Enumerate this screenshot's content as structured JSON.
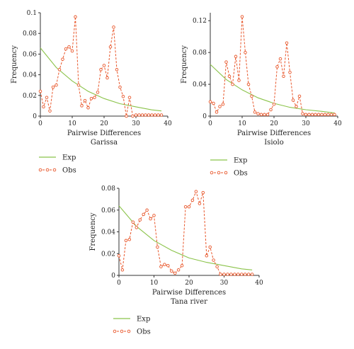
{
  "chart_data": [
    {
      "type": "line",
      "subtitle": "Garissa",
      "xlabel": "Pairwise Differences",
      "ylabel": "Frequency",
      "xlim": [
        0,
        40
      ],
      "ylim": [
        0,
        0.1
      ],
      "xticks": [
        "0",
        "10",
        "20",
        "30",
        "40"
      ],
      "yticks": [
        "0",
        "0.02",
        "0.04",
        "0.06",
        "0.08",
        "0.1"
      ],
      "grid": false,
      "legend_position": "below",
      "series": [
        {
          "name": "Exp",
          "color": "#8bc34a",
          "marker": "none",
          "x": [
            0,
            5,
            10,
            15,
            20,
            25,
            30,
            35,
            38
          ],
          "y": [
            0.066,
            0.047,
            0.034,
            0.024,
            0.017,
            0.012,
            0.009,
            0.006,
            0.005
          ]
        },
        {
          "name": "Obs",
          "color": "#e8562a",
          "marker": "open-circle",
          "x": [
            0,
            1,
            2,
            3,
            4,
            5,
            6,
            7,
            8,
            9,
            10,
            11,
            12,
            13,
            14,
            15,
            16,
            17,
            18,
            19,
            20,
            21,
            22,
            23,
            24,
            25,
            26,
            27,
            28,
            29,
            30,
            31,
            32,
            33,
            34,
            35,
            36,
            37,
            38
          ],
          "y": [
            0.024,
            0.009,
            0.018,
            0.005,
            0.028,
            0.03,
            0.045,
            0.055,
            0.065,
            0.067,
            0.063,
            0.096,
            0.03,
            0.01,
            0.015,
            0.008,
            0.017,
            0.018,
            0.023,
            0.045,
            0.049,
            0.037,
            0.067,
            0.086,
            0.045,
            0.028,
            0.019,
            0.0,
            0.018,
            0.0,
            0.001,
            0.001,
            0.001,
            0.001,
            0.001,
            0.001,
            0.001,
            0.001,
            0.001
          ]
        }
      ]
    },
    {
      "type": "line",
      "subtitle": "Isiolo",
      "xlabel": "Pairwise Differences",
      "ylabel": "Frequency",
      "xlim": [
        0,
        40
      ],
      "ylim": [
        0,
        0.13
      ],
      "xticks": [
        "0",
        "10",
        "20",
        "30",
        "40"
      ],
      "yticks": [
        "0",
        "0.04",
        "0.08",
        "0.12"
      ],
      "grid": false,
      "legend_position": "below",
      "series": [
        {
          "name": "Exp",
          "color": "#8bc34a",
          "marker": "none",
          "x": [
            0,
            5,
            10,
            15,
            20,
            25,
            30,
            35,
            39
          ],
          "y": [
            0.065,
            0.046,
            0.033,
            0.023,
            0.016,
            0.011,
            0.008,
            0.006,
            0.004
          ]
        },
        {
          "name": "Obs",
          "color": "#e8562a",
          "marker": "open-circle",
          "x": [
            0,
            1,
            2,
            3,
            4,
            5,
            6,
            7,
            8,
            9,
            10,
            11,
            12,
            13,
            14,
            15,
            16,
            17,
            18,
            19,
            20,
            21,
            22,
            23,
            24,
            25,
            26,
            27,
            28,
            29,
            30,
            31,
            32,
            33,
            34,
            35,
            36,
            37,
            38,
            39
          ],
          "y": [
            0.018,
            0.016,
            0.005,
            0.012,
            0.015,
            0.068,
            0.05,
            0.04,
            0.075,
            0.045,
            0.125,
            0.08,
            0.04,
            0.025,
            0.005,
            0.003,
            0.002,
            0.002,
            0.002,
            0.008,
            0.015,
            0.062,
            0.072,
            0.05,
            0.092,
            0.055,
            0.02,
            0.012,
            0.025,
            0.003,
            0.002,
            0.002,
            0.002,
            0.002,
            0.002,
            0.002,
            0.002,
            0.002,
            0.002,
            0.002
          ]
        }
      ]
    },
    {
      "type": "line",
      "subtitle": "Tana river",
      "xlabel": "Pairwise Differences",
      "ylabel": "Frequency",
      "xlim": [
        0,
        40
      ],
      "ylim": [
        0,
        0.08
      ],
      "xticks": [
        "0",
        "10",
        "20",
        "30",
        "40"
      ],
      "yticks": [
        "0",
        "0.02",
        "0.04",
        "0.06",
        "0.08"
      ],
      "grid": false,
      "legend_position": "below",
      "series": [
        {
          "name": "Exp",
          "color": "#8bc34a",
          "marker": "none",
          "x": [
            0,
            5,
            10,
            15,
            20,
            25,
            30,
            35,
            38
          ],
          "y": [
            0.064,
            0.045,
            0.032,
            0.023,
            0.016,
            0.012,
            0.009,
            0.006,
            0.005
          ]
        },
        {
          "name": "Obs",
          "color": "#e8562a",
          "marker": "open-circle",
          "x": [
            0,
            1,
            2,
            3,
            4,
            5,
            6,
            7,
            8,
            9,
            10,
            11,
            12,
            13,
            14,
            15,
            16,
            17,
            18,
            19,
            20,
            21,
            22,
            23,
            24,
            25,
            26,
            27,
            28,
            29,
            30,
            31,
            32,
            33,
            34,
            35,
            36,
            37,
            38
          ],
          "y": [
            0.018,
            0.005,
            0.032,
            0.033,
            0.049,
            0.044,
            0.051,
            0.056,
            0.06,
            0.052,
            0.055,
            0.026,
            0.008,
            0.01,
            0.009,
            0.004,
            0.002,
            0.005,
            0.009,
            0.063,
            0.063,
            0.069,
            0.077,
            0.066,
            0.076,
            0.018,
            0.026,
            0.014,
            0.008,
            0.001,
            0.001,
            0.001,
            0.001,
            0.001,
            0.001,
            0.001,
            0.001,
            0.001,
            0.001
          ]
        }
      ]
    }
  ]
}
